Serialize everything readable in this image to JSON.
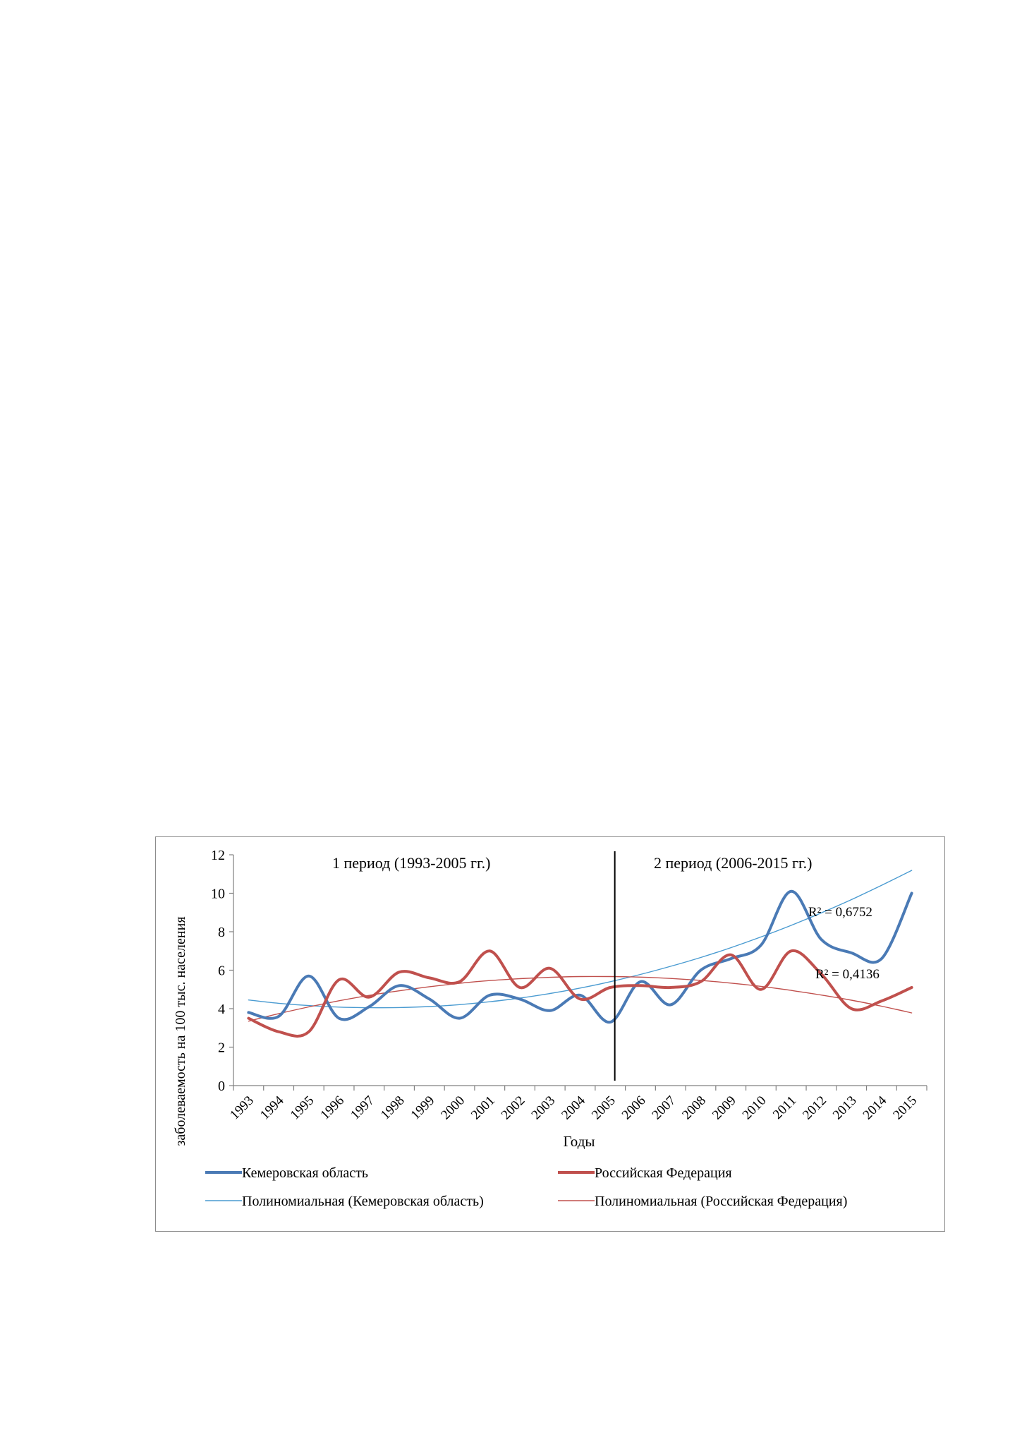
{
  "chart_data": {
    "type": "line",
    "title": "",
    "xlabel": "Годы",
    "ylabel": "заболеваемость на 100 тыс. населения",
    "ylim": [
      0,
      12
    ],
    "yticks": [
      0,
      2,
      4,
      6,
      8,
      10,
      12
    ],
    "grid": false,
    "legend_position": "bottom",
    "x": [
      "1993",
      "1994",
      "1995",
      "1996",
      "1997",
      "1998",
      "1999",
      "2000",
      "2001",
      "2002",
      "2003",
      "2004",
      "2005",
      "2006",
      "2007",
      "2008",
      "2009",
      "2010",
      "2011",
      "2012",
      "2013",
      "2014",
      "2015"
    ],
    "series": [
      {
        "name": "Кемеровская область",
        "color": "#4a7ab5",
        "values": [
          3.8,
          3.6,
          5.7,
          3.5,
          4.1,
          5.2,
          4.5,
          3.5,
          4.7,
          4.5,
          3.9,
          4.7,
          3.3,
          5.4,
          4.2,
          6.0,
          6.6,
          7.3,
          10.1,
          7.6,
          6.9,
          6.6,
          10.0
        ]
      },
      {
        "name": "Российская Федерация",
        "color": "#c0504d",
        "values": [
          3.5,
          2.8,
          2.8,
          5.5,
          4.6,
          5.9,
          5.6,
          5.4,
          7.0,
          5.1,
          6.1,
          4.5,
          5.1,
          5.2,
          5.1,
          5.4,
          6.8,
          5.0,
          7.0,
          5.8,
          4.0,
          4.4,
          5.1
        ]
      },
      {
        "name": "Полиномиальная (Кемеровская область)",
        "color": "#4a9bd1",
        "trend": "poly2",
        "values": [
          4.45,
          4.28,
          4.16,
          4.08,
          4.05,
          4.06,
          4.11,
          4.21,
          4.36,
          4.55,
          4.79,
          5.07,
          5.4,
          5.78,
          6.2,
          6.66,
          7.17,
          7.73,
          8.33,
          8.98,
          9.67,
          10.41,
          11.19
        ]
      },
      {
        "name": "Полиномиальная (Российская Федерация)",
        "color": "#c0504d",
        "trend": "poly2",
        "values": [
          3.35,
          3.74,
          4.09,
          4.41,
          4.69,
          4.93,
          5.14,
          5.32,
          5.46,
          5.56,
          5.63,
          5.67,
          5.67,
          5.64,
          5.57,
          5.47,
          5.33,
          5.16,
          4.95,
          4.71,
          4.44,
          4.13,
          3.78
        ]
      }
    ],
    "annotations": [
      {
        "text": "1 период (1993-2005  гг.)"
      },
      {
        "text": "2 период (2006-2015  гг.)"
      },
      {
        "text": "R² = 0,6752"
      },
      {
        "text": "R² = 0,4136"
      }
    ],
    "divider_between": [
      "2005",
      "2006"
    ]
  }
}
